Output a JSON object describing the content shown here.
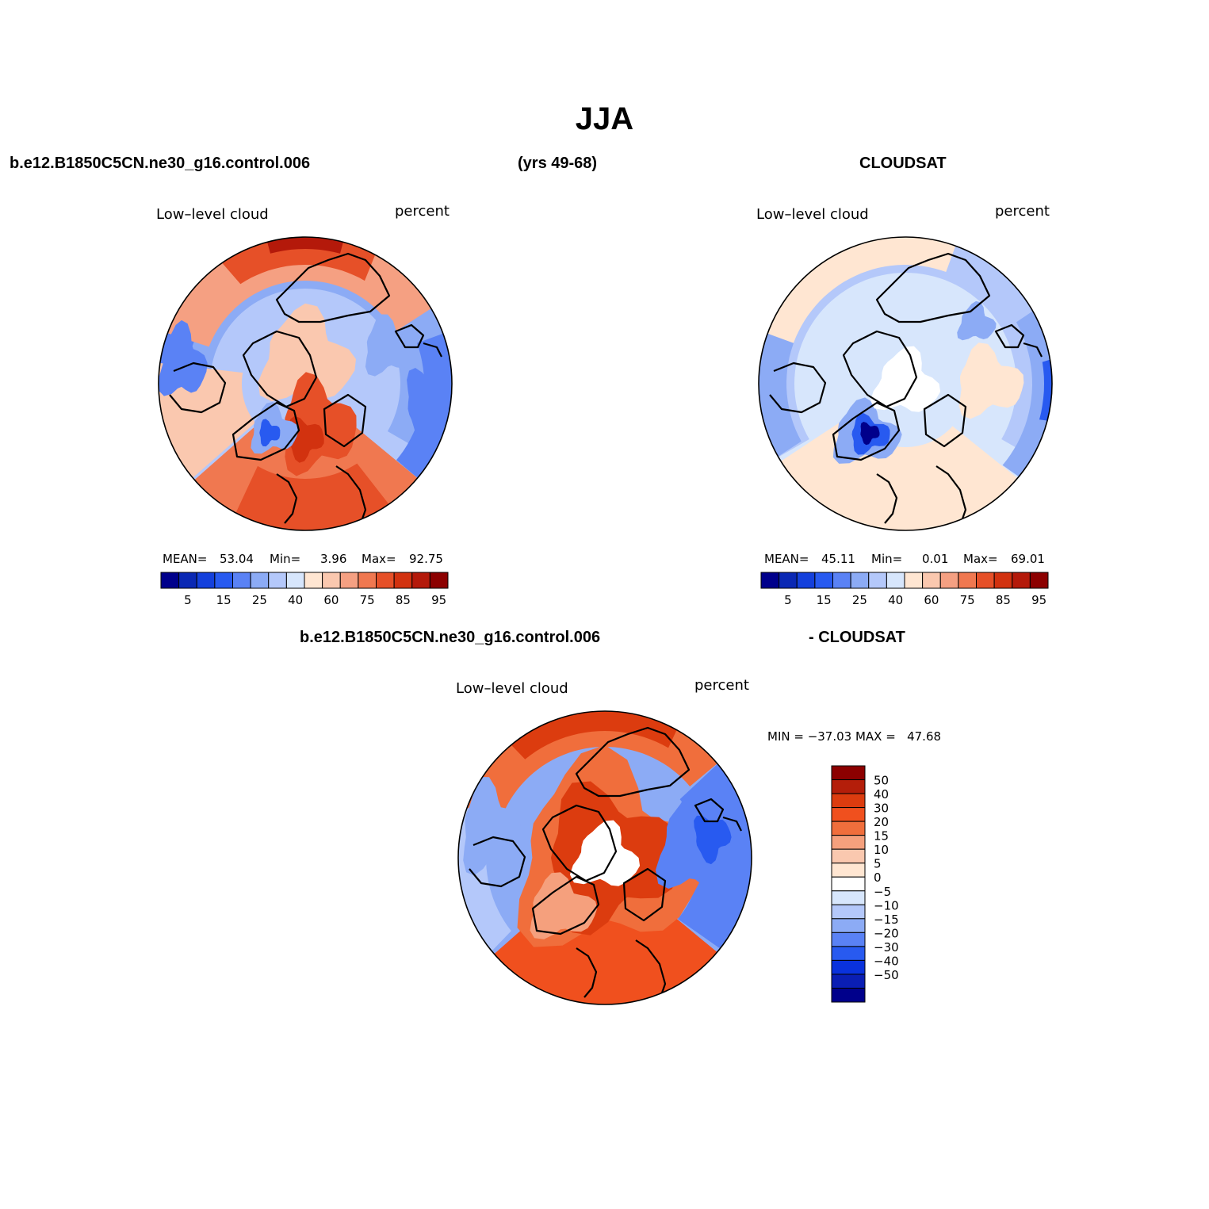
{
  "page": {
    "title": "JJA",
    "case_name": "b.e12.B1850C5CN.ne30_g16.control.006",
    "years": "(yrs 49-68)",
    "obs_name": "CLOUDSAT",
    "diff_left": "b.e12.B1850C5CN.ne30_g16.control.006",
    "diff_right": "- CLOUDSAT"
  },
  "panels": [
    {
      "id": "model",
      "variable": "Low–level cloud",
      "units": "percent",
      "mean_label": "MEAN=",
      "mean": "53.04",
      "min_label": "Min=",
      "min": "3.96",
      "max_label": "Max=",
      "max": "92.75"
    },
    {
      "id": "obs",
      "variable": "Low–level cloud",
      "units": "percent",
      "mean_label": "MEAN=",
      "mean": "45.11",
      "min_label": "Min=",
      "min": "0.01",
      "max_label": "Max=",
      "max": "69.01"
    },
    {
      "id": "diff",
      "variable": "Low–level cloud",
      "units": "percent",
      "minmax": "MIN = −37.03 MAX =   47.68"
    }
  ],
  "colorbar_h": {
    "tick_labels": [
      "5",
      "15",
      "25",
      "40",
      "60",
      "75",
      "85",
      "95"
    ],
    "colors": [
      "#00008b",
      "#0a28b4",
      "#1440dc",
      "#285af0",
      "#5a82f5",
      "#8cabf5",
      "#b4c8fa",
      "#d7e6fc",
      "#ffe6d2",
      "#fac8af",
      "#f5a082",
      "#f07850",
      "#e65028",
      "#d2320f",
      "#b4190a",
      "#8c0000"
    ]
  },
  "colorbar_v": {
    "tick_labels": [
      "50",
      "40",
      "30",
      "20",
      "15",
      "10",
      "5",
      "0",
      "−5",
      "−10",
      "−15",
      "−20",
      "−30",
      "−40",
      "−50"
    ],
    "colors": [
      "#8c0000",
      "#b41e0a",
      "#dc3c0f",
      "#f0501e",
      "#f06e3c",
      "#f5a07d",
      "#fac8af",
      "#ffe6d2",
      "#ffffff",
      "#d7e6fc",
      "#b4c8fa",
      "#8cabf5",
      "#5a82f5",
      "#285af0",
      "#0a32dc",
      "#0a1eb4",
      "#00008b"
    ]
  }
}
